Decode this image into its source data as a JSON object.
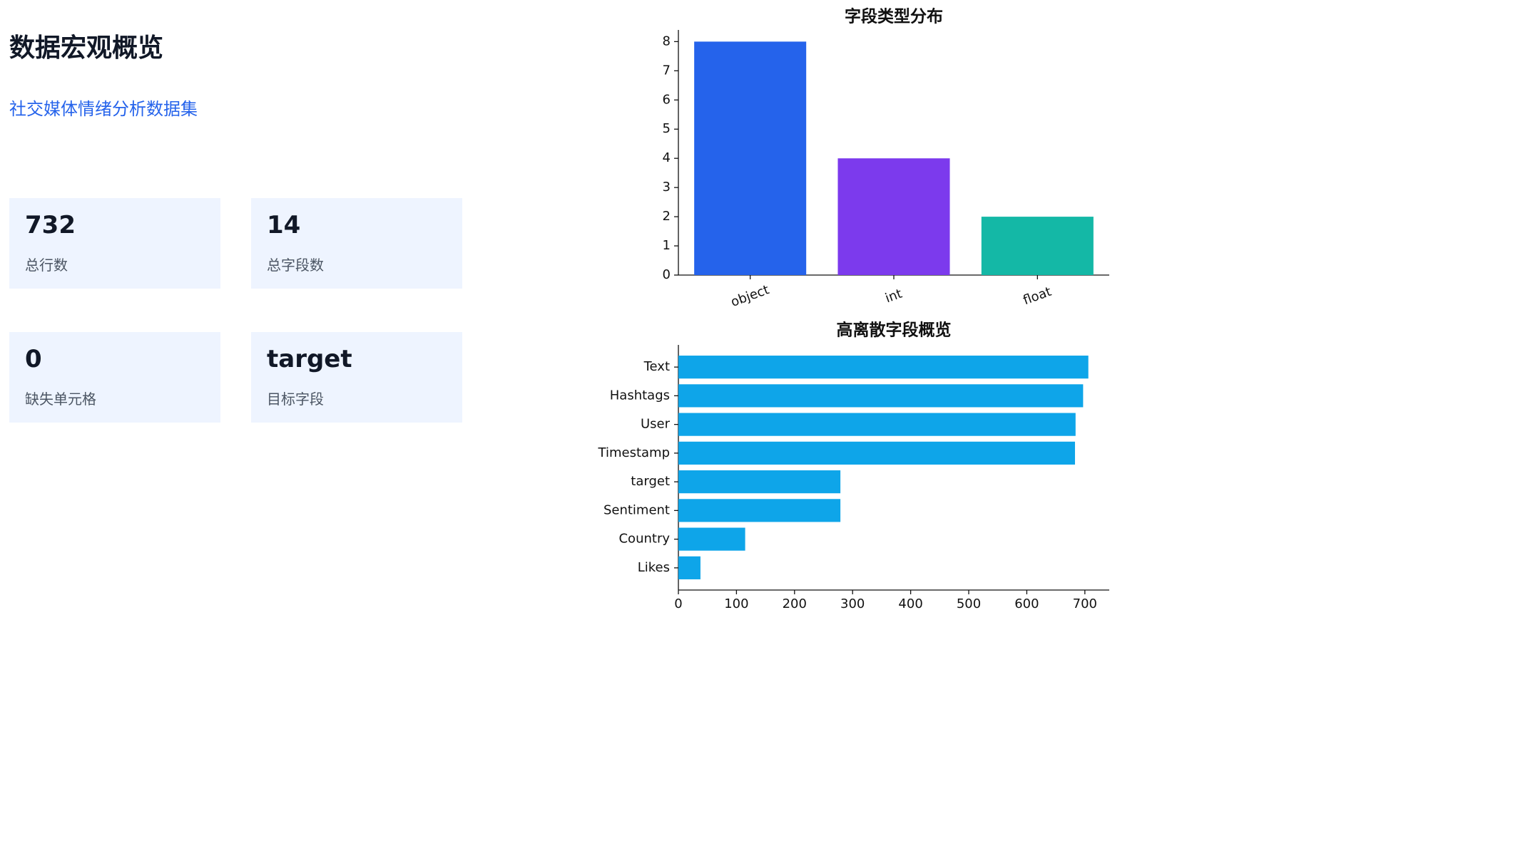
{
  "header": {
    "title": "数据宏观概览",
    "subtitle": "社交媒体情绪分析数据集"
  },
  "cards": [
    {
      "value": 732,
      "label": "总行数"
    },
    {
      "value": 14,
      "label": "总字段数"
    },
    {
      "value": 0,
      "label": "缺失单元格"
    },
    {
      "value": "target",
      "label": "目标字段"
    }
  ],
  "chart_data": [
    {
      "type": "bar",
      "title": "字段类型分布",
      "categories": [
        "object",
        "int",
        "float"
      ],
      "values": [
        8,
        4,
        2
      ],
      "colors": [
        "#2563eb",
        "#7c3aed",
        "#14b8a6"
      ],
      "ylim": [
        0,
        8.4
      ],
      "yticks": [
        0,
        1,
        2,
        3,
        4,
        5,
        6,
        7,
        8
      ]
    },
    {
      "type": "barh",
      "title": "高离散字段概览",
      "categories": [
        "Text",
        "Hashtags",
        "User",
        "Timestamp",
        "target",
        "Sentiment",
        "Country",
        "Likes"
      ],
      "values": [
        706,
        697,
        684,
        683,
        279,
        279,
        115,
        38
      ],
      "color": "#0ea5e9",
      "xlim": [
        0,
        742
      ],
      "xticks": [
        0,
        100,
        200,
        300,
        400,
        500,
        600,
        700
      ]
    }
  ]
}
